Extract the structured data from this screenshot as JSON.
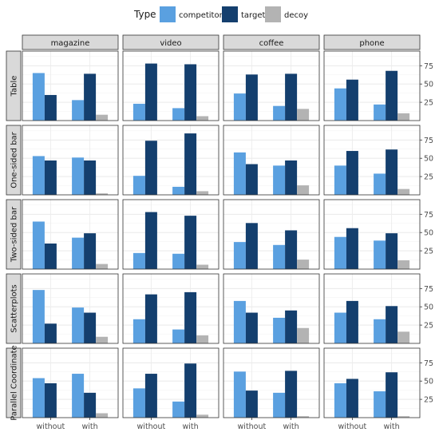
{
  "chart_data": {
    "type": "bar",
    "layout": "facet-grid",
    "legend": {
      "title": "Type",
      "position": "top",
      "entries": [
        {
          "name": "competitor",
          "color": "#5aa0e0"
        },
        {
          "name": "target",
          "color": "#143f6e"
        },
        {
          "name": "decoy",
          "color": "#b3b3b3"
        }
      ]
    },
    "columns": [
      "magazine",
      "video",
      "coffee",
      "phone"
    ],
    "rows": [
      "Table",
      "One-sided bar",
      "Two-sided bar",
      "Scatterplots",
      "Parallel Coordinate"
    ],
    "categories": [
      "without",
      "with"
    ],
    "series_names": [
      "competitor",
      "target",
      "decoy"
    ],
    "ylim": [
      0,
      95
    ],
    "yticks": [
      25,
      50,
      75
    ],
    "grid": true,
    "panels": [
      {
        "row": "Table",
        "column": "magazine",
        "without": [
          65,
          35,
          0
        ],
        "with": [
          28,
          64,
          8
        ]
      },
      {
        "row": "Table",
        "column": "video",
        "without": [
          23,
          78,
          0
        ],
        "with": [
          17,
          77,
          6
        ]
      },
      {
        "row": "Table",
        "column": "coffee",
        "without": [
          37,
          63,
          0
        ],
        "with": [
          20,
          64,
          16
        ]
      },
      {
        "row": "Table",
        "column": "phone",
        "without": [
          44,
          56,
          0
        ],
        "with": [
          22,
          68,
          10
        ]
      },
      {
        "row": "One-sided bar",
        "column": "magazine",
        "without": [
          53,
          47,
          0
        ],
        "with": [
          51,
          47,
          2
        ]
      },
      {
        "row": "One-sided bar",
        "column": "video",
        "without": [
          26,
          74,
          0
        ],
        "with": [
          11,
          84,
          5
        ]
      },
      {
        "row": "One-sided bar",
        "column": "coffee",
        "without": [
          58,
          42,
          0
        ],
        "with": [
          40,
          47,
          13
        ]
      },
      {
        "row": "One-sided bar",
        "column": "phone",
        "without": [
          40,
          60,
          0
        ],
        "with": [
          29,
          62,
          8
        ]
      },
      {
        "row": "Two-sided bar",
        "column": "magazine",
        "without": [
          65,
          35,
          0
        ],
        "with": [
          43,
          49,
          7
        ]
      },
      {
        "row": "Two-sided bar",
        "column": "video",
        "without": [
          22,
          78,
          0
        ],
        "with": [
          21,
          73,
          6
        ]
      },
      {
        "row": "Two-sided bar",
        "column": "coffee",
        "without": [
          37,
          63,
          0
        ],
        "with": [
          33,
          53,
          13
        ]
      },
      {
        "row": "Two-sided bar",
        "column": "phone",
        "without": [
          44,
          56,
          0
        ],
        "with": [
          39,
          49,
          12
        ]
      },
      {
        "row": "Scatterplots",
        "column": "magazine",
        "without": [
          73,
          27,
          0
        ],
        "with": [
          49,
          42,
          9
        ]
      },
      {
        "row": "Scatterplots",
        "column": "video",
        "without": [
          33,
          67,
          0
        ],
        "with": [
          19,
          70,
          11
        ]
      },
      {
        "row": "Scatterplots",
        "column": "coffee",
        "without": [
          58,
          42,
          0
        ],
        "with": [
          35,
          45,
          21
        ]
      },
      {
        "row": "Scatterplots",
        "column": "phone",
        "without": [
          42,
          58,
          0
        ],
        "with": [
          33,
          51,
          16
        ]
      },
      {
        "row": "Parallel Coordinate",
        "column": "magazine",
        "without": [
          54,
          47,
          0
        ],
        "with": [
          60,
          34,
          6
        ]
      },
      {
        "row": "Parallel Coordinate",
        "column": "video",
        "without": [
          40,
          60,
          0
        ],
        "with": [
          22,
          74,
          4
        ]
      },
      {
        "row": "Parallel Coordinate",
        "column": "coffee",
        "without": [
          63,
          37,
          0
        ],
        "with": [
          34,
          64,
          2
        ]
      },
      {
        "row": "Parallel Coordinate",
        "column": "phone",
        "without": [
          47,
          53,
          0
        ],
        "with": [
          36,
          62,
          2
        ]
      }
    ]
  }
}
